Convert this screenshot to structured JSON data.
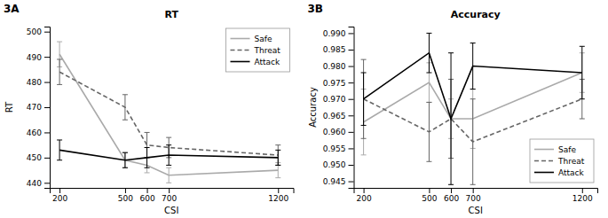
{
  "chart_data": [
    {
      "type": "line",
      "title": "RT",
      "x_label": "CSI",
      "y_label": "RT",
      "annotations": [
        "3A"
      ],
      "x": [
        200,
        500,
        600,
        700,
        1200
      ],
      "xlim": [
        155,
        1270
      ],
      "xticks": [
        200,
        500,
        600,
        700,
        1200
      ],
      "ylim": [
        438,
        502
      ],
      "yticks": [
        440,
        450,
        460,
        470,
        480,
        490,
        500
      ],
      "grid": false,
      "legend": "upper right",
      "series": [
        {
          "name": "Safe",
          "color": "#aaaaaa",
          "line_style": "solid",
          "values": [
            491,
            449,
            447,
            443,
            445
          ],
          "error": [
            5,
            3,
            3,
            3,
            3
          ]
        },
        {
          "name": "Threat",
          "color": "#666666",
          "line_style": "dashed",
          "values": [
            484,
            470,
            455,
            454,
            451
          ],
          "error": [
            5,
            5,
            5,
            4,
            4
          ]
        },
        {
          "name": "Attack",
          "color": "#000000",
          "line_style": "solid",
          "values": [
            453,
            449,
            450,
            451,
            450
          ],
          "error": [
            4,
            3,
            4,
            4,
            3
          ]
        }
      ]
    },
    {
      "type": "line",
      "title": "Accuracy",
      "x_label": "CSI",
      "y_label": "Accuracy",
      "annotations": [
        "3B"
      ],
      "x": [
        200,
        500,
        600,
        700,
        1200
      ],
      "xlim": [
        155,
        1270
      ],
      "xticks": [
        200,
        500,
        600,
        700,
        1200
      ],
      "ylim": [
        0.943,
        0.992
      ],
      "yticks": [
        0.945,
        {
          "value": 0.95,
          "label": "0.950"
        },
        0.955,
        {
          "value": 0.96,
          "label": "0.960"
        },
        0.965,
        {
          "value": 0.97,
          "label": "0.970"
        },
        0.975,
        {
          "value": 0.98,
          "label": "0.980"
        },
        0.985,
        {
          "value": 0.99,
          "label": "0.990"
        }
      ],
      "grid": false,
      "legend": "lower right",
      "series": [
        {
          "name": "Safe",
          "color": "#aaaaaa",
          "line_style": "solid",
          "values": [
            0.963,
            0.975,
            0.964,
            0.964,
            0.978
          ],
          "error": [
            0.01,
            0.006,
            0.006,
            0.009,
            0.006
          ]
        },
        {
          "name": "Threat",
          "color": "#666666",
          "line_style": "dashed",
          "values": [
            0.97,
            0.96,
            0.964,
            0.957,
            0.97
          ],
          "error": [
            0.012,
            0.009,
            0.012,
            0.013,
            0.006
          ]
        },
        {
          "name": "Attack",
          "color": "#000000",
          "line_style": "solid",
          "values": [
            0.97,
            0.984,
            0.964,
            0.98,
            0.978
          ],
          "error": [
            0.008,
            0.006,
            0.02,
            0.007,
            0.008
          ]
        }
      ]
    }
  ]
}
